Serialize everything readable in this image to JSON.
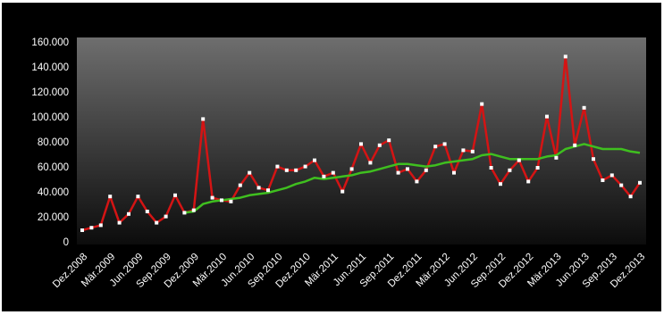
{
  "chart_data": {
    "type": "line",
    "categories": [
      "Dez.2008",
      null,
      null,
      "Mär.2009",
      null,
      null,
      "Jun.2009",
      null,
      null,
      "Sep.2009",
      null,
      null,
      "Dez.2009",
      null,
      null,
      "Mär.2010",
      null,
      null,
      "Jun.2010",
      null,
      null,
      "Sep.2010",
      null,
      null,
      "Dez.2010",
      null,
      null,
      "Mär.2011",
      null,
      null,
      "Jun.2011",
      null,
      null,
      "Sep.2011",
      null,
      null,
      "Dez.2011",
      null,
      null,
      "Mär.2012",
      null,
      null,
      "Jun.2012",
      null,
      null,
      "Sep.2012",
      null,
      null,
      "Dez.2012",
      null,
      null,
      "Mär.2013",
      null,
      null,
      "Jun.2013",
      null,
      null,
      "Sep.2013",
      null,
      null,
      "Dez.2013"
    ],
    "series": [
      {
        "color": "#d41414",
        "marker_color": "#ffffff",
        "values": [
          10000,
          12000,
          14000,
          37000,
          16000,
          23000,
          37000,
          25000,
          16000,
          21000,
          38000,
          24000,
          26000,
          99000,
          36000,
          34000,
          33000,
          46000,
          56000,
          44000,
          42000,
          61000,
          58000,
          58000,
          61000,
          66000,
          53000,
          56000,
          41000,
          59000,
          79000,
          64000,
          78000,
          82000,
          56000,
          59000,
          49000,
          58000,
          77000,
          79000,
          56000,
          74000,
          73000,
          111000,
          60000,
          47000,
          58000,
          66000,
          49000,
          60000,
          101000,
          68000,
          149000,
          78000,
          108000,
          67000,
          50000,
          54000,
          46000,
          37000,
          48000
        ]
      },
      {
        "color": "#3fbf1f",
        "values": [
          null,
          null,
          null,
          null,
          null,
          null,
          null,
          null,
          null,
          null,
          null,
          24000,
          25000,
          31000,
          33000,
          34000,
          35000,
          36000,
          38000,
          39000,
          40000,
          42000,
          44000,
          47000,
          49000,
          52000,
          51000,
          52000,
          53000,
          54000,
          56000,
          57000,
          59000,
          61000,
          63000,
          63000,
          62000,
          61000,
          62000,
          64000,
          65000,
          66000,
          67000,
          70000,
          71000,
          69000,
          67000,
          67000,
          67000,
          67000,
          69000,
          70000,
          75000,
          77000,
          79000,
          77000,
          75000,
          75000,
          75000,
          73000,
          72000
        ]
      }
    ],
    "ylim": [
      0,
      160000
    ],
    "yticks": [
      0,
      {
        "value": 20000,
        "label": "20.000"
      },
      {
        "value": 40000,
        "label": "40.000"
      },
      {
        "value": 60000,
        "label": "60.000"
      },
      {
        "value": 80000,
        "label": "80.000"
      },
      {
        "value": 100000,
        "label": "100.000"
      },
      {
        "value": 120000,
        "label": "120.000"
      },
      {
        "value": 140000,
        "label": "140.000"
      },
      {
        "value": 160000,
        "label": "160.000"
      }
    ]
  }
}
